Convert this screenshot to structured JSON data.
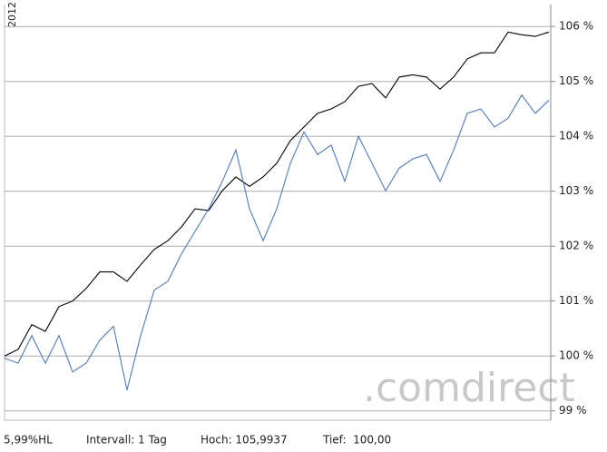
{
  "chart_data": {
    "type": "line",
    "x_label": "2012",
    "watermark": ".comdirect",
    "footer": [
      "5,99%HL",
      "Intervall: 1 Tag",
      "Hoch: 105,9937",
      "Tief:  100,00"
    ],
    "ylim": [
      98.83,
      106.4
    ],
    "yticks": [
      {
        "value": 99,
        "label": "99 %"
      },
      {
        "value": 100,
        "label": "100 %"
      },
      {
        "value": 101,
        "label": "101 %"
      },
      {
        "value": 102,
        "label": "102 %"
      },
      {
        "value": 103,
        "label": "103 %"
      },
      {
        "value": 104,
        "label": "104 %"
      },
      {
        "value": 105,
        "label": "105 %"
      },
      {
        "value": 106,
        "label": "106 %"
      }
    ],
    "grid": true,
    "series": [
      {
        "color": "#000000",
        "values": [
          100.0,
          100.12,
          100.57,
          100.45,
          100.9,
          101.0,
          101.23,
          101.53,
          101.53,
          101.36,
          101.66,
          101.94,
          102.1,
          102.35,
          102.68,
          102.65,
          103.01,
          103.26,
          103.09,
          103.26,
          103.51,
          103.92,
          104.17,
          104.42,
          104.5,
          104.63,
          104.91,
          104.96,
          104.7,
          105.08,
          105.12,
          105.08,
          104.86,
          105.08,
          105.41,
          105.52,
          105.52,
          105.9,
          105.85,
          105.82,
          105.9
        ]
      },
      {
        "color": "#4a78d0",
        "values": [
          99.96,
          99.87,
          100.37,
          99.87,
          100.37,
          99.71,
          99.87,
          100.29,
          100.54,
          99.38,
          100.37,
          101.2,
          101.36,
          101.86,
          102.27,
          102.68,
          103.18,
          103.75,
          102.68,
          102.1,
          102.68,
          103.51,
          104.08,
          103.67,
          103.84,
          103.18,
          104.0,
          103.51,
          103.01,
          103.42,
          103.59,
          103.67,
          103.18,
          103.75,
          104.42,
          104.5,
          104.17,
          104.33,
          104.75,
          104.42,
          104.66
        ]
      }
    ]
  }
}
